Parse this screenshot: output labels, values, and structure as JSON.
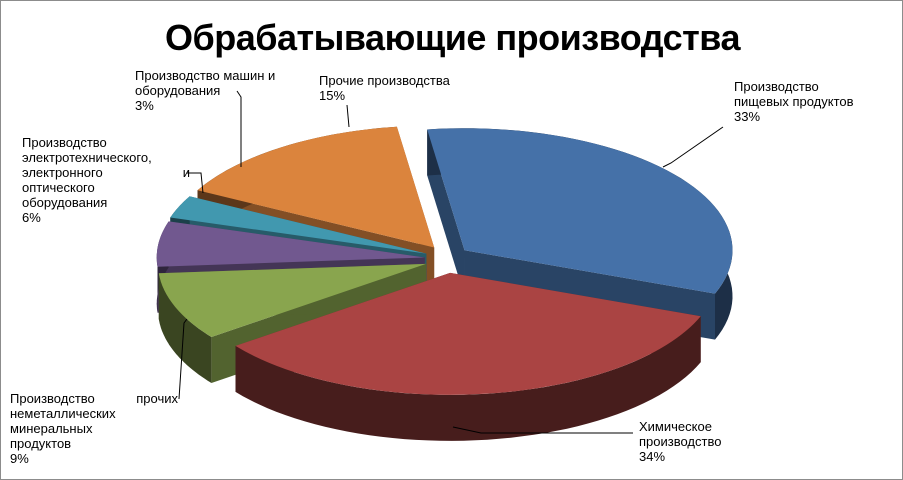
{
  "chart_data": {
    "type": "pie",
    "title": "Обрабатывающие производства",
    "slices": [
      {
        "label_lines": [
          "Производство",
          "пищевых продуктов"
        ],
        "value": 33,
        "pct_label": "33%",
        "color": "#4571a8"
      },
      {
        "label_lines": [
          "Химическое",
          "производство"
        ],
        "value": 34,
        "pct_label": "34%",
        "color": "#aa4443"
      },
      {
        "label_lines": [
          "Производство прочих",
          "неметаллических",
          "минеральных",
          "продуктов"
        ],
        "value": 9,
        "pct_label": "9%",
        "color": "#89a54e"
      },
      {
        "label_lines": [
          "Производство",
          "электротехнического,",
          "электронного и",
          "оптического",
          "оборудования"
        ],
        "value": 6,
        "pct_label": "6%",
        "color": "#71588f"
      },
      {
        "label_lines": [
          "Производство машин и",
          "оборудования"
        ],
        "value": 3,
        "pct_label": "3%",
        "color": "#4198af"
      },
      {
        "label_lines": [
          "Прочие производства"
        ],
        "value": 15,
        "pct_label": "15%",
        "color": "#db843d"
      }
    ]
  }
}
